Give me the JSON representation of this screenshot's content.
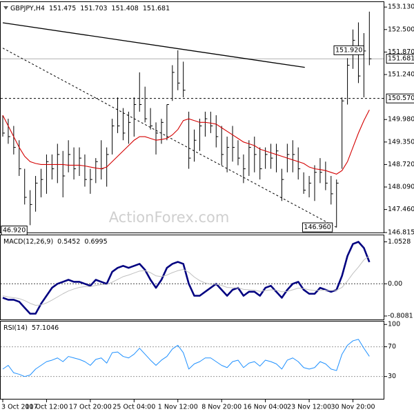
{
  "chart_data": [
    {
      "type": "ohlc",
      "title": "GBPJPY,H4",
      "header_values": [
        151.475,
        151.703,
        151.408,
        151.681
      ],
      "categories": [
        "3 Oct 2017",
        null,
        null,
        null,
        null,
        null,
        null,
        null,
        "10 Oct 12:00",
        null,
        null,
        null,
        null,
        null,
        null,
        null,
        "17 Oct 20:00",
        null,
        null,
        null,
        null,
        null,
        null,
        null,
        "25 Oct 04:00",
        null,
        null,
        null,
        null,
        null,
        null,
        null,
        "1 Nov 12:00",
        null,
        null,
        null,
        null,
        null,
        null,
        null,
        "8 Nov 20:00",
        null,
        null,
        null,
        null,
        null,
        null,
        null,
        "16 Nov 04:00",
        null,
        null,
        null,
        null,
        null,
        null,
        null,
        "23 Nov 12:00",
        null,
        null,
        null,
        null,
        null,
        null,
        null,
        "30 Nov 20:00",
        null,
        null,
        null
      ],
      "high": [
        150.1,
        150.0,
        149.8,
        149.4,
        148.6,
        148.0,
        148.4,
        148.6,
        149.0,
        149.0,
        149.3,
        149.1,
        149.4,
        149.2,
        149.2,
        149.0,
        148.6,
        148.9,
        149.4,
        149.2,
        150.0,
        150.6,
        150.3,
        150.2,
        150.6,
        151.3,
        150.9,
        150.3,
        149.9,
        150.0,
        150.4,
        151.5,
        151.92,
        151.6,
        150.2,
        149.7,
        150.0,
        150.2,
        150.2,
        150.1,
        149.8,
        149.5,
        149.8,
        149.4,
        149.0,
        149.4,
        149.5,
        149.2,
        149.2,
        149.3,
        149.3,
        148.6,
        149.3,
        149.4,
        149.2,
        148.5,
        148.4,
        148.7,
        148.9,
        148.8,
        148.4,
        148.3,
        150.6,
        151.7,
        152.5,
        152.7,
        152.4,
        153.0
      ],
      "low": [
        149.5,
        149.3,
        149.0,
        148.4,
        147.6,
        147.02,
        147.4,
        147.8,
        147.9,
        148.3,
        148.2,
        147.8,
        148.5,
        148.3,
        148.4,
        148.1,
        147.9,
        148.2,
        148.3,
        148.1,
        149.0,
        149.6,
        149.4,
        149.3,
        149.5,
        150.2,
        149.9,
        149.7,
        149.0,
        149.3,
        149.4,
        150.5,
        150.8,
        150.6,
        148.6,
        148.8,
        149.1,
        149.5,
        149.6,
        149.2,
        148.7,
        148.5,
        148.8,
        148.7,
        148.2,
        148.4,
        148.5,
        148.3,
        148.6,
        148.6,
        148.5,
        147.7,
        148.5,
        148.5,
        148.3,
        147.9,
        147.8,
        147.7,
        148.2,
        148.0,
        147.6,
        146.96,
        148.6,
        150.4,
        151.4,
        151.0,
        150.6,
        151.5
      ],
      "close": [
        149.6,
        149.5,
        149.2,
        148.6,
        147.8,
        147.6,
        148.2,
        148.3,
        148.8,
        148.6,
        149.0,
        148.4,
        149.0,
        148.6,
        148.9,
        148.3,
        148.3,
        148.8,
        148.6,
        149.0,
        149.8,
        149.8,
        149.6,
        149.9,
        150.4,
        150.4,
        150.0,
        149.8,
        149.6,
        149.9,
        150.4,
        151.3,
        151.0,
        150.8,
        148.9,
        149.4,
        149.8,
        150.0,
        149.8,
        149.5,
        149.0,
        149.2,
        149.2,
        148.9,
        148.6,
        149.2,
        149.0,
        148.6,
        149.0,
        148.9,
        149.1,
        148.3,
        149.0,
        149.0,
        148.6,
        148.0,
        148.2,
        148.5,
        148.5,
        148.2,
        147.9,
        148.2,
        150.5,
        151.5,
        152.2,
        151.2,
        151.9,
        151.681
      ],
      "bar_color": "#000000",
      "ma": {
        "color": "#d40000",
        "values": [
          150.1,
          149.8,
          149.5,
          149.2,
          148.95,
          148.8,
          148.75,
          148.72,
          148.72,
          148.72,
          148.72,
          148.72,
          148.7,
          148.7,
          148.7,
          148.68,
          148.65,
          148.62,
          148.6,
          148.65,
          148.8,
          148.95,
          149.1,
          149.25,
          149.4,
          149.5,
          149.5,
          149.45,
          149.4,
          149.42,
          149.45,
          149.55,
          149.7,
          149.95,
          150.0,
          149.95,
          149.9,
          149.9,
          149.88,
          149.85,
          149.75,
          149.65,
          149.55,
          149.45,
          149.35,
          149.3,
          149.25,
          149.15,
          149.1,
          149.05,
          149.0,
          148.95,
          148.9,
          148.85,
          148.8,
          148.75,
          148.65,
          148.6,
          148.58,
          148.55,
          148.5,
          148.45,
          148.55,
          148.8,
          149.2,
          149.6,
          149.95,
          150.25
        ]
      },
      "ylim": [
        146.815,
        153.25
      ],
      "yticks": [
        {
          "value": 153.13,
          "label": "153.130"
        },
        {
          "value": 152.5,
          "label": "152.500"
        },
        {
          "value": 151.87,
          "label": "151.870"
        },
        {
          "value": 151.24,
          "label": "151.240"
        },
        {
          "value": 149.98,
          "label": "149.980"
        },
        {
          "value": 149.35,
          "label": "149.350"
        },
        {
          "value": 148.72,
          "label": "148.720"
        },
        {
          "value": 148.09,
          "label": "148.090"
        },
        {
          "value": 147.46,
          "label": "147.460"
        },
        146.815
      ],
      "current": {
        "value": 151.681,
        "label": "151.681"
      },
      "level": {
        "value": 150.57,
        "label": "150.570"
      },
      "high_label": {
        "value": 151.92,
        "label": "151.920"
      },
      "low_label": {
        "value": 146.96,
        "label": "146.960"
      },
      "edge_label": "46.920",
      "trendlines": [
        {
          "x": [
            0,
            55.2
          ],
          "y": [
            152.69,
            151.44
          ],
          "dashed": false
        },
        {
          "x": [
            0,
            61
          ],
          "y": [
            151.98,
            146.96
          ],
          "dashed": true
        }
      ],
      "watermark": "ActionForex.com"
    },
    {
      "type": "line",
      "title": "MACD(12,26,9)",
      "header_values": [
        0.5452,
        0.6995
      ],
      "ylim": [
        -0.895,
        1.2
      ],
      "yticks": [
        1.0528,
        {
          "value": 0,
          "label": "0.00"
        },
        -0.8081
      ],
      "levels": [
        0
      ],
      "series": [
        {
          "color": "#000080",
          "values": [
            -0.35,
            -0.4,
            -0.4,
            -0.45,
            -0.6,
            -0.75,
            -0.75,
            -0.5,
            -0.3,
            -0.1,
            0.0,
            0.05,
            0.1,
            0.05,
            0.05,
            0.0,
            -0.05,
            0.1,
            0.05,
            0.0,
            0.3,
            0.4,
            0.45,
            0.4,
            0.45,
            0.5,
            0.35,
            0.1,
            -0.1,
            0.1,
            0.4,
            0.5,
            0.55,
            0.5,
            0.0,
            -0.3,
            -0.3,
            -0.2,
            -0.1,
            0.0,
            -0.15,
            -0.3,
            -0.15,
            -0.1,
            -0.3,
            -0.2,
            -0.2,
            -0.3,
            -0.1,
            -0.05,
            -0.2,
            -0.35,
            -0.15,
            0.0,
            0.05,
            -0.15,
            -0.25,
            -0.25,
            -0.1,
            -0.15,
            -0.2,
            -0.15,
            0.2,
            0.7,
            1.0,
            1.0528,
            0.9,
            0.5452
          ]
        },
        {
          "color": "#c0c0c0",
          "values": [
            -0.3,
            -0.33,
            -0.35,
            -0.37,
            -0.42,
            -0.49,
            -0.54,
            -0.53,
            -0.48,
            -0.41,
            -0.33,
            -0.25,
            -0.18,
            -0.13,
            -0.09,
            -0.07,
            -0.07,
            -0.04,
            -0.02,
            -0.02,
            0.04,
            0.11,
            0.18,
            0.22,
            0.27,
            0.32,
            0.33,
            0.28,
            0.2,
            0.18,
            0.22,
            0.28,
            0.33,
            0.36,
            0.29,
            0.17,
            0.08,
            0.02,
            -0.01,
            -0.01,
            -0.04,
            -0.09,
            -0.1,
            -0.1,
            -0.14,
            -0.15,
            -0.16,
            -0.19,
            -0.17,
            -0.15,
            -0.16,
            -0.2,
            -0.19,
            -0.15,
            -0.11,
            -0.12,
            -0.15,
            -0.17,
            -0.16,
            -0.16,
            -0.17,
            -0.16,
            -0.09,
            0.07,
            0.26,
            0.42,
            0.6,
            0.6995
          ]
        }
      ]
    },
    {
      "type": "line",
      "title": "RSI(14)",
      "header_values": [
        57.1046
      ],
      "ylim": [
        0,
        103
      ],
      "yticks": [
        100,
        70,
        30
      ],
      "levels": [
        70,
        30
      ],
      "series": [
        {
          "color": "#1e90ff",
          "values": [
            40,
            45,
            35,
            33,
            30,
            32,
            40,
            45,
            50,
            52,
            55,
            50,
            57,
            55,
            53,
            50,
            45,
            53,
            55,
            48,
            62,
            63,
            57,
            55,
            60,
            68,
            60,
            52,
            45,
            52,
            57,
            67,
            72,
            62,
            40,
            47,
            50,
            55,
            55,
            50,
            45,
            42,
            50,
            52,
            42,
            48,
            50,
            44,
            52,
            50,
            47,
            40,
            52,
            55,
            50,
            42,
            40,
            42,
            50,
            47,
            40,
            38,
            60,
            72,
            78,
            80,
            68,
            57.1046
          ]
        }
      ]
    }
  ]
}
